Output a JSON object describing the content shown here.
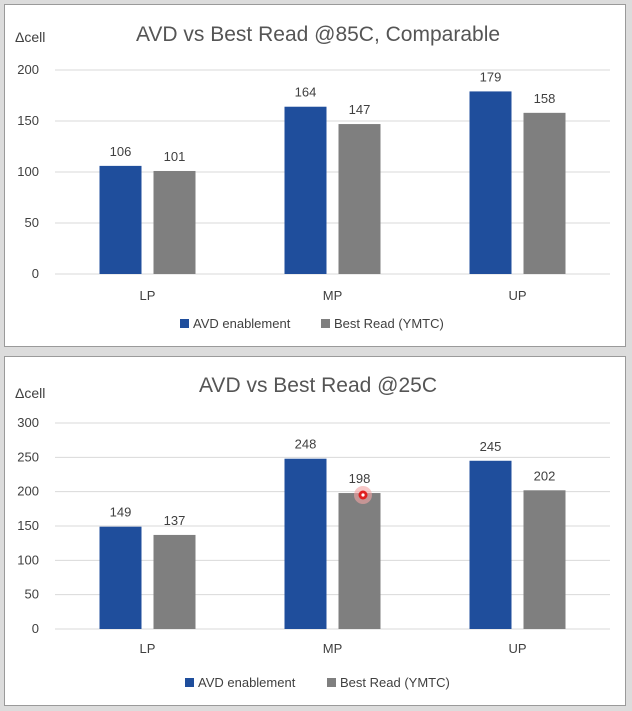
{
  "colors": {
    "avd": "#1f4e9c",
    "best": "#7f7f7f",
    "marker": "#e02020"
  },
  "chart_data": [
    {
      "type": "bar",
      "title": "AVD vs Best Read @85C, Comparable",
      "ylabel": "Δcell",
      "xlabel": "",
      "categories": [
        "LP",
        "MP",
        "UP"
      ],
      "ylim": [
        0,
        200
      ],
      "yticks": [
        0,
        50,
        100,
        150,
        200
      ],
      "grid": true,
      "legend": "bottom",
      "series": [
        {
          "name": "AVD enablement",
          "values": [
            106,
            164,
            179
          ]
        },
        {
          "name": "Best Read (YMTC)",
          "values": [
            101,
            147,
            158
          ]
        }
      ]
    },
    {
      "type": "bar",
      "title": "AVD vs Best Read @25C",
      "ylabel": "Δcell",
      "xlabel": "",
      "categories": [
        "LP",
        "MP",
        "UP"
      ],
      "ylim": [
        0,
        300
      ],
      "yticks": [
        0,
        50,
        100,
        150,
        200,
        250,
        300
      ],
      "grid": true,
      "legend": "bottom",
      "series": [
        {
          "name": "AVD enablement",
          "values": [
            149,
            248,
            245
          ]
        },
        {
          "name": "Best Read (YMTC)",
          "values": [
            137,
            198,
            202
          ]
        }
      ]
    }
  ]
}
